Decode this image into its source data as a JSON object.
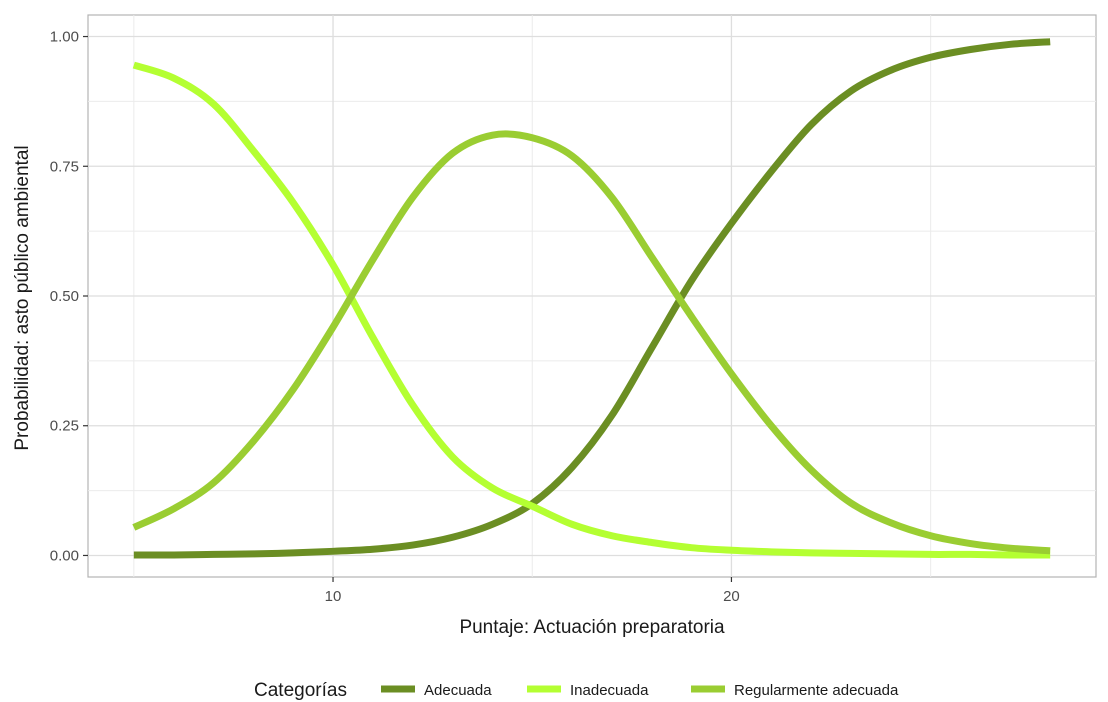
{
  "chart_data": {
    "type": "line",
    "xlabel": "Puntaje: Actuación preparatoria",
    "ylabel": "Probabilidad: asto público ambiental",
    "xlim": [
      5,
      28
    ],
    "ylim": [
      0,
      1
    ],
    "x_ticks": [
      10,
      20
    ],
    "x_tick_labels": [
      "10",
      "20"
    ],
    "y_ticks": [
      0,
      0.25,
      0.5,
      0.75,
      1
    ],
    "y_tick_labels": [
      "0.00",
      "0.25",
      "0.50",
      "0.75",
      "1.00"
    ],
    "grid": true,
    "legend_title": "Categorías",
    "legend_position": "bottom",
    "x": [
      5,
      6,
      7,
      8,
      9,
      10,
      11,
      12,
      13,
      14,
      15,
      16,
      17,
      18,
      19,
      20,
      21,
      22,
      23,
      24,
      25,
      26,
      27,
      28
    ],
    "series": [
      {
        "name": "Adecuada",
        "color": "#6b8e23",
        "values": [
          0.001,
          0.001,
          0.002,
          0.003,
          0.005,
          0.008,
          0.012,
          0.02,
          0.035,
          0.06,
          0.1,
          0.17,
          0.27,
          0.4,
          0.53,
          0.64,
          0.74,
          0.83,
          0.895,
          0.935,
          0.96,
          0.975,
          0.985,
          0.99
        ]
      },
      {
        "name": "Inadecuada",
        "color": "#b4ff32",
        "values": [
          0.945,
          0.92,
          0.87,
          0.78,
          0.68,
          0.56,
          0.42,
          0.29,
          0.19,
          0.13,
          0.095,
          0.06,
          0.038,
          0.025,
          0.015,
          0.01,
          0.007,
          0.005,
          0.004,
          0.003,
          0.002,
          0.002,
          0.001,
          0.001
        ]
      },
      {
        "name": "Regularmente adecuada",
        "color": "#9acd32",
        "values": [
          0.054,
          0.09,
          0.14,
          0.22,
          0.32,
          0.44,
          0.57,
          0.69,
          0.775,
          0.81,
          0.805,
          0.77,
          0.69,
          0.575,
          0.46,
          0.35,
          0.25,
          0.165,
          0.101,
          0.063,
          0.038,
          0.023,
          0.014,
          0.009
        ]
      }
    ]
  }
}
